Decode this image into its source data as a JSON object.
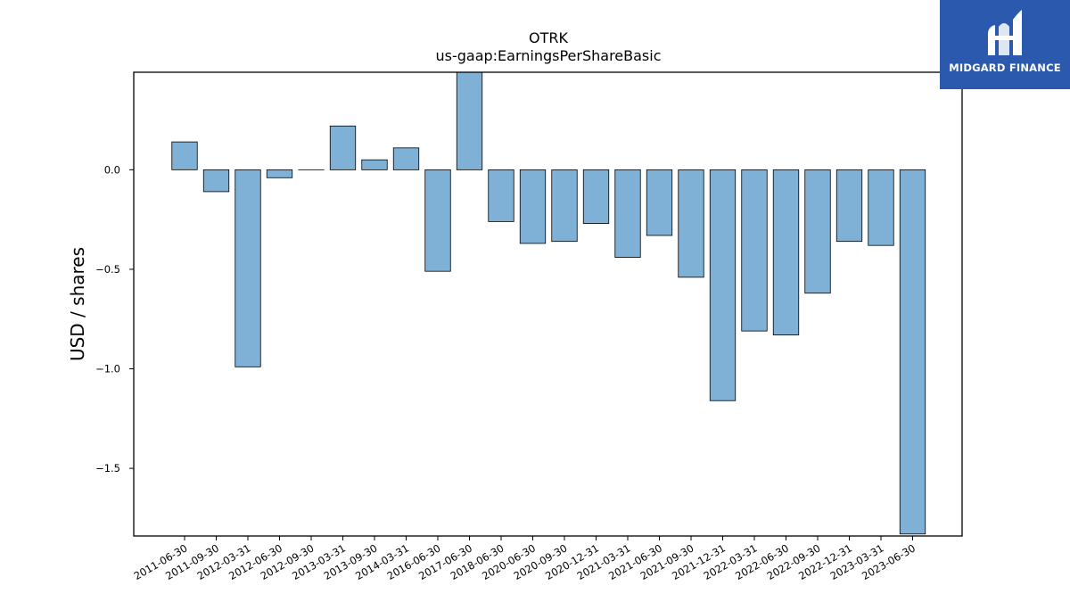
{
  "logo": {
    "text": "MIDGARD FINANCE",
    "icon": "midgard-logo-icon",
    "background": "#2b59ad"
  },
  "chart_data": {
    "type": "bar",
    "title": "OTRK",
    "subtitle": "us-gaap:EarningsPerShareBasic",
    "xlabel": "",
    "ylabel": "USD / shares",
    "categories": [
      "2011-06-30",
      "2011-09-30",
      "2012-03-31",
      "2012-06-30",
      "2012-09-30",
      "2013-03-31",
      "2013-09-30",
      "2014-03-31",
      "2016-06-30",
      "2017-06-30",
      "2018-06-30",
      "2020-06-30",
      "2020-09-30",
      "2020-12-31",
      "2021-03-31",
      "2021-06-30",
      "2021-09-30",
      "2021-12-31",
      "2022-03-31",
      "2022-06-30",
      "2022-09-30",
      "2022-12-31",
      "2023-03-31",
      "2023-06-30"
    ],
    "values": [
      0.14,
      -0.11,
      -0.99,
      -0.04,
      0.0,
      0.22,
      0.05,
      0.11,
      -0.51,
      0.49,
      -0.26,
      -0.37,
      -0.36,
      -0.27,
      -0.44,
      -0.33,
      -0.54,
      -1.16,
      -0.81,
      -0.83,
      -0.62,
      -0.36,
      -0.38,
      -1.83
    ],
    "ylim": [
      -1.84,
      0.49
    ],
    "yticks": [
      0.0,
      -0.5,
      -1.0,
      -1.5
    ],
    "ytick_labels": [
      "0.0",
      "−0.5",
      "−1.0",
      "−1.5"
    ],
    "bar_color": "#7fb0d5",
    "edge_color": "#000000",
    "grid": false,
    "legend": "none"
  }
}
